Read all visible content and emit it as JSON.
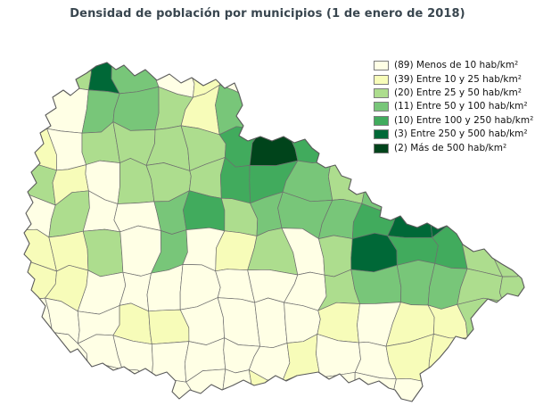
{
  "title": "Densidad de población por municipios (1 de enero de 2018)",
  "colors": {
    "title_text": "#39464f",
    "cell_border": "#6e6e6e",
    "region_outline": "#5a5a5a",
    "background": "#ffffff",
    "legend_text": "#111111"
  },
  "legend": {
    "items": [
      {
        "count": 89,
        "label": "(89) Menos de 10 hab/km²",
        "color": "#ffffe5"
      },
      {
        "count": 39,
        "label": "(39) Entre 10 y 25 hab/km²",
        "color": "#f7fcb9"
      },
      {
        "count": 20,
        "label": "(20) Entre 25 y 50 hab/km²",
        "color": "#addd8e"
      },
      {
        "count": 11,
        "label": "(11) Entre 50 y 100 hab/km²",
        "color": "#78c679"
      },
      {
        "count": 10,
        "label": "(10) Entre 100 y 250 hab/km²",
        "color": "#41ab5d"
      },
      {
        "count": 3,
        "label": "(3) Entre 250 y 500 hab/km²",
        "color": "#006837"
      },
      {
        "count": 2,
        "label": "(2) Más de 500 hab/km²",
        "color": "#00441b"
      }
    ]
  },
  "chart_data": {
    "type": "choropleth",
    "title": "Densidad de población por municipios (1 de enero de 2018)",
    "unit": "hab/km²",
    "legend_position": "top-right",
    "classes": [
      {
        "range": "Menos de 10 hab/km²",
        "municipality_count": 89,
        "color": "#ffffe5"
      },
      {
        "range": "Entre 10 y 25 hab/km²",
        "municipality_count": 39,
        "color": "#f7fcb9"
      },
      {
        "range": "Entre 25 y 50 hab/km²",
        "municipality_count": 20,
        "color": "#addd8e"
      },
      {
        "range": "Entre 50 y 100 hab/km²",
        "municipality_count": 11,
        "color": "#78c679"
      },
      {
        "range": "Entre 100 y 250 hab/km²",
        "municipality_count": 10,
        "color": "#41ab5d"
      },
      {
        "range": "Entre 250 y 500 hab/km²",
        "municipality_count": 3,
        "color": "#006837"
      },
      {
        "range": "Más de 500 hab/km²",
        "municipality_count": 2,
        "color": "#00441b"
      }
    ]
  }
}
